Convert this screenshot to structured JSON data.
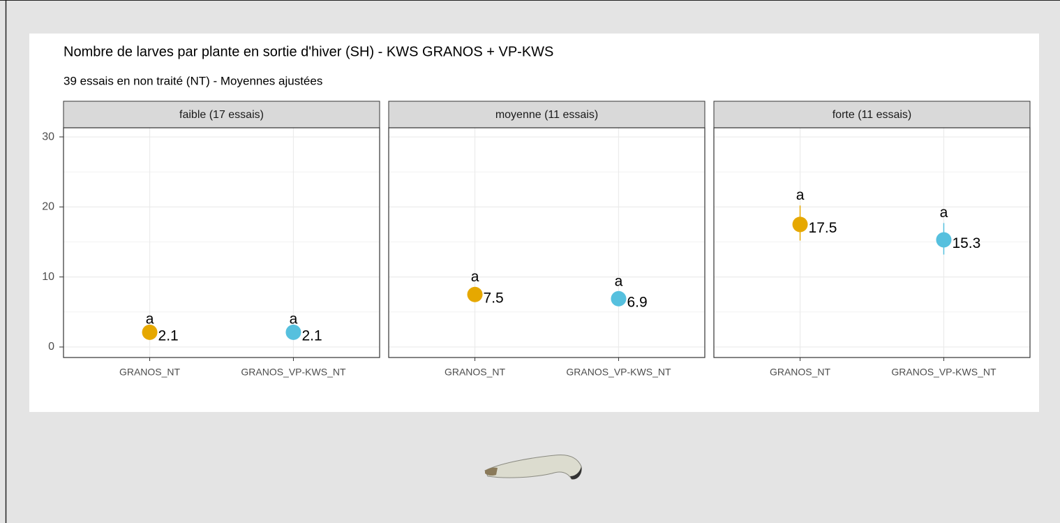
{
  "chart_data": {
    "type": "dot-errorbar",
    "title": "Nombre de larves par plante en sortie d'hiver (SH) - KWS GRANOS + VP-KWS",
    "subtitle": "39 essais en non traité (NT) - Moyennes ajustées",
    "categories": [
      "GRANOS_NT",
      "GRANOS_VP-KWS_NT"
    ],
    "colors": [
      "#e6a800",
      "#56c0de"
    ],
    "ylim": [
      -1.5,
      31.3
    ],
    "yticks": [
      0,
      10,
      20,
      30
    ],
    "minor_yticks": [
      5,
      15,
      25
    ],
    "grid": true,
    "panels": [
      {
        "label": "faible (17 essais)",
        "values": [
          2.1,
          2.1
        ],
        "lower": [
          1.7,
          1.7
        ],
        "upper": [
          2.5,
          2.5
        ],
        "group_labels": [
          "a",
          "a"
        ]
      },
      {
        "label": "moyenne (11 essais)",
        "values": [
          7.5,
          6.9
        ],
        "lower": [
          6.6,
          6.1
        ],
        "upper": [
          8.5,
          7.9
        ],
        "group_labels": [
          "a",
          "a"
        ]
      },
      {
        "label": "forte (11 essais)",
        "values": [
          17.5,
          15.3
        ],
        "lower": [
          15.2,
          13.2
        ],
        "upper": [
          20.2,
          17.7
        ],
        "group_labels": [
          "a",
          "a"
        ]
      }
    ]
  }
}
